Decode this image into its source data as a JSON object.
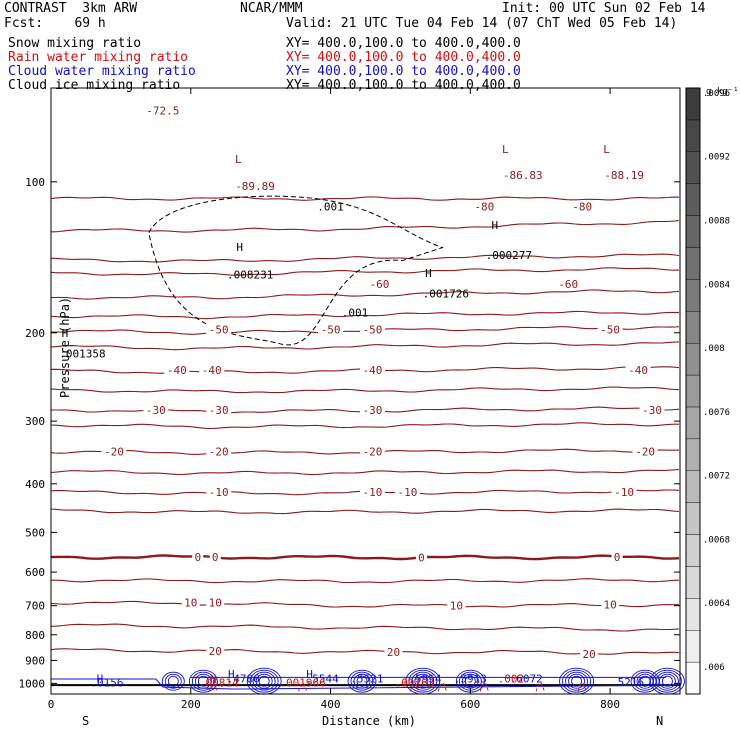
{
  "header": {
    "title_left": "CONTRAST  3km ARW",
    "title_center": "NCAR/MMM",
    "init": "Init: 00 UTC Sun 02 Feb 14",
    "fcst": "Fcst:    69 h",
    "valid": "Valid: 21 UTC Tue 04 Feb 14 (07 ChT Wed 05 Feb 14)"
  },
  "legend": [
    {
      "label": "Snow mixing ratio",
      "xy": "XY= 400.0,100.0 to 400.0,400.0",
      "color": "#000000"
    },
    {
      "label": "Rain water mixing ratio",
      "xy": "XY= 400.0,100.0 to 400.0,400.0",
      "color": "#d01010"
    },
    {
      "label": "Cloud water mixing ratio",
      "xy": "XY= 400.0,100.0 to 400.0,400.0",
      "color": "#1010d0"
    },
    {
      "label": "Cloud ice mixing ratio",
      "xy": "XY= 400.0,100.0 to 400.0,400.0",
      "color": "#000000"
    }
  ],
  "colorbar": {
    "unit": "g kg⁻¹",
    "ticks": [
      ".006",
      ".0064",
      ".0068",
      ".0072",
      ".0076",
      ".008",
      ".0084",
      ".0088",
      ".0092",
      ".0096"
    ],
    "range": [
      0.006,
      0.0098
    ]
  },
  "chart_data": {
    "type": "contour cross-section",
    "xlabel": "Distance (km)",
    "ylabel": "Pressure (hPa)",
    "xlim": [
      0,
      900
    ],
    "ylim": [
      1050,
      65
    ],
    "x_ticks": [
      0,
      200,
      400,
      600,
      800
    ],
    "y_ticks": [
      100,
      200,
      300,
      400,
      500,
      600,
      700,
      800,
      900,
      1000
    ],
    "x_end_labels": {
      "left": "S",
      "right": "N"
    },
    "temperature_contours": {
      "color": "#8b1a1a",
      "interval": 5,
      "levels": [
        {
          "value": -80,
          "p": [
            125,
            125,
            124,
            122,
            120
          ]
        },
        {
          "value": -75,
          "p": [
            108,
            108,
            108,
            108,
            108
          ]
        },
        {
          "value": -70,
          "p": [
            143,
            144,
            142,
            141,
            140
          ]
        },
        {
          "value": -65,
          "p": [
            152,
            153,
            151,
            150,
            149
          ]
        },
        {
          "value": -60,
          "p": [
            170,
            170,
            168,
            166,
            165
          ]
        },
        {
          "value": -55,
          "p": [
            185,
            186,
            184,
            183,
            182
          ]
        },
        {
          "value": -50,
          "p": [
            198,
            200,
            198,
            196,
            195
          ]
        },
        {
          "value": -45,
          "p": [
            213,
            215,
            213,
            211,
            210
          ]
        },
        {
          "value": -40,
          "p": [
            238,
            240,
            238,
            236,
            235
          ]
        },
        {
          "value": -35,
          "p": [
            260,
            262,
            261,
            259,
            258
          ]
        },
        {
          "value": -30,
          "p": [
            285,
            287,
            286,
            284,
            283
          ]
        },
        {
          "value": -25,
          "p": [
            305,
            308,
            307,
            305,
            304
          ]
        },
        {
          "value": -20,
          "p": [
            345,
            347,
            346,
            344,
            343
          ]
        },
        {
          "value": -15,
          "p": [
            378,
            381,
            380,
            378,
            377
          ]
        },
        {
          "value": -10,
          "p": [
            415,
            418,
            417,
            415,
            414
          ]
        },
        {
          "value": -5,
          "p": [
            452,
            456,
            455,
            453,
            452
          ]
        },
        {
          "value": 0,
          "p": [
            560,
            560,
            561,
            561,
            560
          ]
        },
        {
          "value": 5,
          "p": [
            622,
            625,
            626,
            624,
            622
          ]
        },
        {
          "value": 10,
          "p": [
            690,
            693,
            701,
            699,
            697
          ]
        },
        {
          "value": 15,
          "p": [
            765,
            770,
            775,
            777,
            783
          ]
        },
        {
          "value": 20,
          "p": [
            858,
            862,
            866,
            866,
            873
          ]
        }
      ],
      "labels": [
        {
          "text": "-72.5",
          "x": 160,
          "p": 72
        },
        {
          "text": "-80",
          "x": 620,
          "p": 112
        },
        {
          "text": "-80",
          "x": 760,
          "p": 112
        },
        {
          "text": "-60",
          "x": 470,
          "p": 160
        },
        {
          "text": "-60",
          "x": 740,
          "p": 160
        },
        {
          "text": "-50",
          "x": 240,
          "p": 197
        },
        {
          "text": "-50",
          "x": 400,
          "p": 197
        },
        {
          "text": "-50",
          "x": 460,
          "p": 197
        },
        {
          "text": "-50",
          "x": 800,
          "p": 197
        },
        {
          "text": "-40",
          "x": 180,
          "p": 237
        },
        {
          "text": "-40",
          "x": 230,
          "p": 237
        },
        {
          "text": "-40",
          "x": 460,
          "p": 237
        },
        {
          "text": "-40",
          "x": 840,
          "p": 237
        },
        {
          "text": "-30",
          "x": 150,
          "p": 285
        },
        {
          "text": "-30",
          "x": 240,
          "p": 285
        },
        {
          "text": "-30",
          "x": 460,
          "p": 285
        },
        {
          "text": "-30",
          "x": 860,
          "p": 285
        },
        {
          "text": "-20",
          "x": 90,
          "p": 345
        },
        {
          "text": "-20",
          "x": 240,
          "p": 345
        },
        {
          "text": "-20",
          "x": 460,
          "p": 345
        },
        {
          "text": "-20",
          "x": 850,
          "p": 345
        },
        {
          "text": "-10",
          "x": 240,
          "p": 415
        },
        {
          "text": "-10",
          "x": 460,
          "p": 415
        },
        {
          "text": "-10",
          "x": 510,
          "p": 415
        },
        {
          "text": "-10",
          "x": 820,
          "p": 415
        },
        {
          "text": "0",
          "x": 210,
          "p": 560
        },
        {
          "text": "0",
          "x": 235,
          "p": 560
        },
        {
          "text": "0",
          "x": 530,
          "p": 561
        },
        {
          "text": "0",
          "x": 810,
          "p": 560
        },
        {
          "text": "10",
          "x": 200,
          "p": 690
        },
        {
          "text": "10",
          "x": 235,
          "p": 690
        },
        {
          "text": "10",
          "x": 580,
          "p": 699
        },
        {
          "text": "10",
          "x": 800,
          "p": 697
        },
        {
          "text": "20",
          "x": 235,
          "p": 862
        },
        {
          "text": "20",
          "x": 490,
          "p": 866
        },
        {
          "text": "20",
          "x": 770,
          "p": 873
        }
      ]
    },
    "extrema_labels": [
      {
        "text": "L",
        "x": 268,
        "p": 90,
        "color": "#8b1a1a"
      },
      {
        "text": "-89.89",
        "x": 292,
        "p": 102,
        "color": "#8b1a1a"
      },
      {
        "text": "L",
        "x": 650,
        "p": 86,
        "color": "#8b1a1a"
      },
      {
        "text": "-86.83",
        "x": 675,
        "p": 97,
        "color": "#8b1a1a"
      },
      {
        "text": "L",
        "x": 795,
        "p": 86,
        "color": "#8b1a1a"
      },
      {
        "text": "-88.19",
        "x": 820,
        "p": 97,
        "color": "#8b1a1a"
      },
      {
        "text": "H",
        "x": 270,
        "p": 135,
        "color": "#000000"
      },
      {
        "text": ".008231",
        "x": 285,
        "p": 153,
        "color": "#000000"
      },
      {
        "text": ".001",
        "x": 400,
        "p": 112,
        "color": "#000000"
      },
      {
        "text": ".001",
        "x": 435,
        "p": 182,
        "color": "#000000"
      },
      {
        "text": "H",
        "x": 540,
        "p": 152,
        "color": "#000000"
      },
      {
        "text": ".001726",
        "x": 565,
        "p": 167,
        "color": "#000000"
      },
      {
        "text": "H",
        "x": 635,
        "p": 122,
        "color": "#000000"
      },
      {
        "text": ".000277",
        "x": 655,
        "p": 140,
        "color": "#000000"
      },
      {
        "text": "H",
        "x": 20,
        "p": 200,
        "color": "#000000"
      },
      {
        "text": ".001358",
        "x": 45,
        "p": 220,
        "color": "#000000"
      },
      {
        "text": "H",
        "x": 70,
        "p": 977,
        "color": "#1010d0"
      },
      {
        "text": ".0156",
        "x": 80,
        "p": 995,
        "color": "#1010d0"
      },
      {
        "text": "H",
        "x": 258,
        "p": 958,
        "color": "#1010d0"
      },
      {
        "text": ".4786",
        "x": 275,
        "p": 977,
        "color": "#1010d0"
      },
      {
        "text": "H",
        "x": 370,
        "p": 958,
        "color": "#1010d0"
      },
      {
        "text": ".5544",
        "x": 388,
        "p": 977,
        "color": "#1010d0"
      },
      {
        "text": ".5521",
        "x": 452,
        "p": 977,
        "color": "#1010d0"
      },
      {
        "text": ".5954",
        "x": 535,
        "p": 977,
        "color": "#1010d0"
      },
      {
        "text": ".5913",
        "x": 600,
        "p": 977,
        "color": "#1010d0"
      },
      {
        "text": ".6072",
        "x": 680,
        "p": 977,
        "color": "#1010d0"
      },
      {
        "text": ".5216",
        "x": 825,
        "p": 993,
        "color": "#1010d0"
      },
      {
        "text": "H",
        "x": 232,
        "p": 977,
        "color": "#d01010"
      },
      {
        "text": ".00814",
        "x": 240,
        "p": 995,
        "color": "#d01010"
      },
      {
        "text": ".001966",
        "x": 360,
        "p": 995,
        "color": "#d01010"
      },
      {
        "text": ".00263",
        "x": 520,
        "p": 995,
        "color": "#d01010"
      },
      {
        "text": ".002",
        "x": 658,
        "p": 977,
        "color": "#d01010"
      }
    ],
    "cloud_ice_contour": {
      "color": "#000000",
      "style": "dashed",
      "value": 0.001,
      "approx_region_km": [
        140,
        560
      ],
      "approx_region_hPa": [
        110,
        210
      ]
    },
    "cloud_water_contour": {
      "color": "#1010d0",
      "approx_region_hPa": [
        945,
        1000
      ]
    },
    "surface_pressure_hPa": 1008
  }
}
